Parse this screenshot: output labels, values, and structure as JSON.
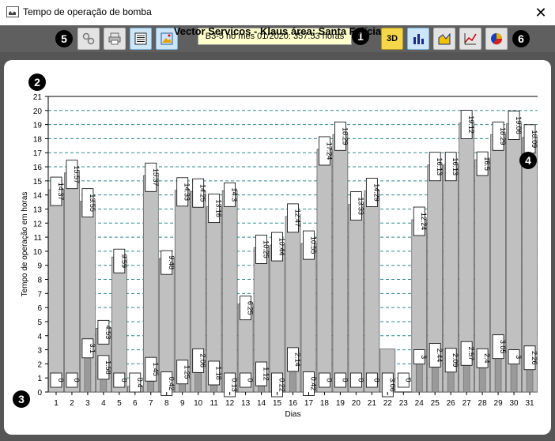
{
  "window": {
    "title": "Tempo de operação de bomba",
    "close_glyph": "✕"
  },
  "toolbar": {
    "status_text": "B3-5 no mes 01/2020: 357:53 horas",
    "left_buttons": [
      "settings-icon",
      "print-icon",
      "list-view-icon",
      "image-view-icon"
    ],
    "right_buttons": [
      "3d-toggle-icon",
      "bar-chart-icon",
      "area-chart-icon",
      "line-chart-icon",
      "pie-chart-icon"
    ],
    "right_3d_label": "3D"
  },
  "markers": {
    "m1": "1",
    "m2": "2",
    "m3": "3",
    "m4": "4",
    "m5": "5",
    "m6": "6"
  },
  "colors": {
    "bar_fill": "#c0c0c0",
    "bar_edge": "#555555",
    "grid": "#2e8b8b",
    "toolbar": "#5f5f5f",
    "frame": "#555555"
  },
  "chart_data": {
    "type": "bar",
    "title": "Vector Servicos - Klaus   área: Santa Felícia",
    "xlabel": "Dias",
    "ylabel": "Tempo de operação em horas",
    "ylim": [
      0,
      21
    ],
    "y_ticks": [
      "0",
      "1",
      "2",
      "3",
      "4",
      "5",
      "6",
      "7",
      "8",
      "9",
      "10",
      "11",
      "12",
      "13",
      "14",
      "15",
      "16",
      "17",
      "18",
      "19",
      "20",
      "21"
    ],
    "grid": true,
    "categories": [
      "1",
      "2",
      "3",
      "4",
      "5",
      "6",
      "7",
      "8",
      "9",
      "10",
      "11",
      "12",
      "13",
      "14",
      "15",
      "16",
      "17",
      "18",
      "19",
      "20",
      "21",
      "22",
      "23",
      "24",
      "25",
      "26",
      "27",
      "28",
      "29",
      "30",
      "31"
    ],
    "series": [
      {
        "values": [
          0,
          0,
          3.1,
          1.58,
          0,
          0.4,
          1.45,
          0.42,
          1.25,
          2.06,
          1.18,
          0.13,
          0,
          1.12,
          0.22,
          2.14,
          0.42,
          0,
          0,
          0,
          0,
          0,
          0,
          3,
          2.44,
          2.09,
          2.57,
          2.4,
          3.05,
          3,
          2.26
        ]
      },
      {
        "values": [
          14.37,
          15.57,
          13.55,
          4.53,
          9.59,
          0.4,
          15.37,
          9.48,
          14.33,
          14.25,
          13.16,
          14.3,
          6.25,
          10.25,
          10.44,
          12.47,
          10.55,
          17.24,
          18.29,
          13.33,
          14.29,
          3.06,
          0,
          12.24,
          16.13,
          16.13,
          19.12,
          16.5,
          18.29,
          19.06,
          18.09
        ]
      }
    ],
    "low_labels": [
      "0",
      "0",
      "3.1",
      "1.58",
      "0",
      "0.4",
      "1.45",
      "0.42",
      "1.25",
      "2.06",
      "1.18",
      "0.13",
      "0",
      "1.12",
      "0.22",
      "2.14",
      "0.42",
      "0",
      "0",
      "0",
      "0",
      "3.06",
      "0",
      "3",
      "2.44",
      "2.09",
      "2.57",
      "2.4",
      "3.05",
      "3",
      "2.26"
    ],
    "high_labels": [
      "14.37",
      "15.57",
      "13.55",
      "4.53",
      "9.59",
      "",
      "15.37",
      "9.48",
      "14.33",
      "14.25",
      "13.16",
      "14.3",
      "6.25",
      "10.25",
      "10.44",
      "12.47",
      "10.55",
      "17.24",
      "18.29",
      "13.33",
      "14.29",
      "",
      "",
      "12.24",
      "16.13",
      "16.13",
      "19.12",
      "16.5",
      "18.29",
      "19.06",
      "18.09"
    ]
  }
}
